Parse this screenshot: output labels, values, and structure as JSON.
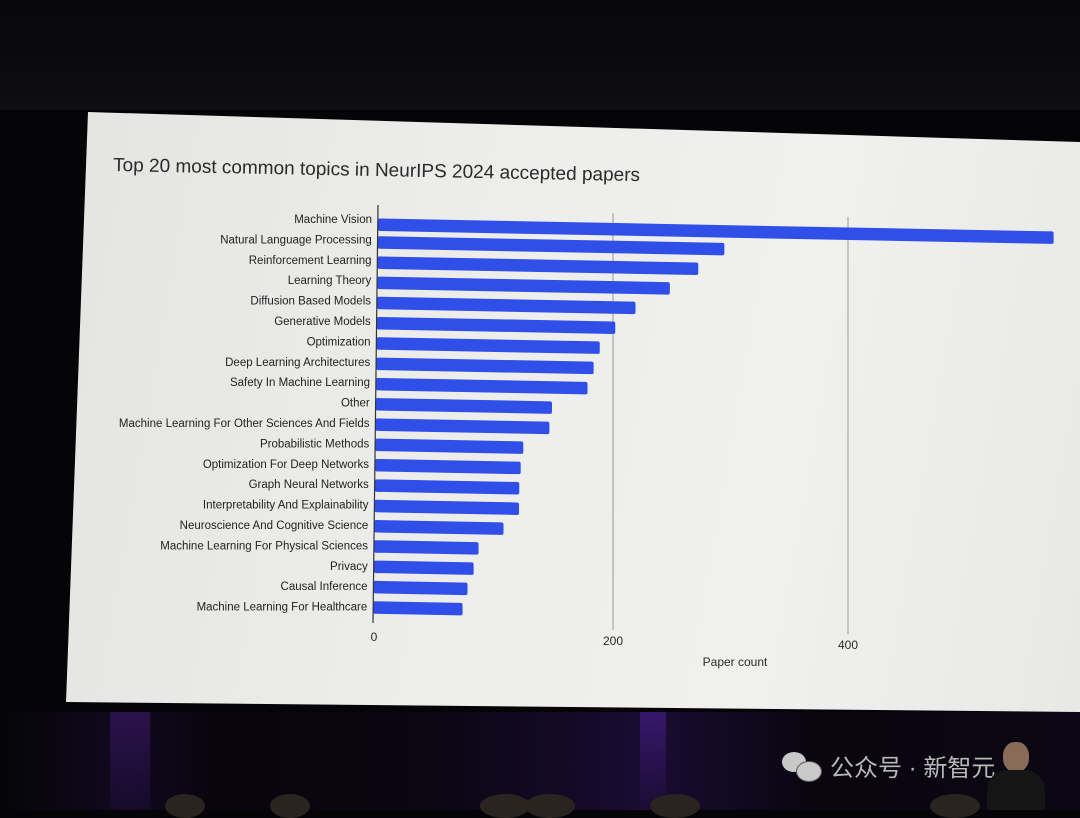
{
  "chart_data": {
    "type": "bar",
    "orientation": "horizontal",
    "title": "Top 20 most common topics in NeurIPS 2024 accepted papers",
    "xlabel": "Paper count",
    "ylabel": "",
    "xlim": [
      0,
      580
    ],
    "xticks": [
      "0",
      "200",
      "400"
    ],
    "xtick_values": [
      0,
      200,
      400
    ],
    "grid": "vertical",
    "bar_color": "#2f4fe8",
    "categories": [
      "Machine Vision",
      "Natural Language Processing",
      "Reinforcement Learning",
      "Learning Theory",
      "Diffusion Based Models",
      "Generative Models",
      "Optimization",
      "Deep Learning Architectures",
      "Safety In Machine Learning",
      "Other",
      "Machine Learning For Other Sciences And Fields",
      "Probabilistic Methods",
      "Optimization For Deep Networks",
      "Graph Neural Networks",
      "Interpretability And Explainability",
      "Neuroscience And Cognitive Science",
      "Machine Learning For Physical Sciences",
      "Privacy",
      "Causal Inference",
      "Machine Learning For Healthcare"
    ],
    "values": [
      575,
      295,
      273,
      249,
      220,
      203,
      190,
      185,
      180,
      150,
      148,
      126,
      124,
      123,
      123,
      110,
      89,
      85,
      80,
      76
    ]
  },
  "watermark": {
    "icon": "wechat-icon",
    "text": "公众号 · 新智元"
  }
}
